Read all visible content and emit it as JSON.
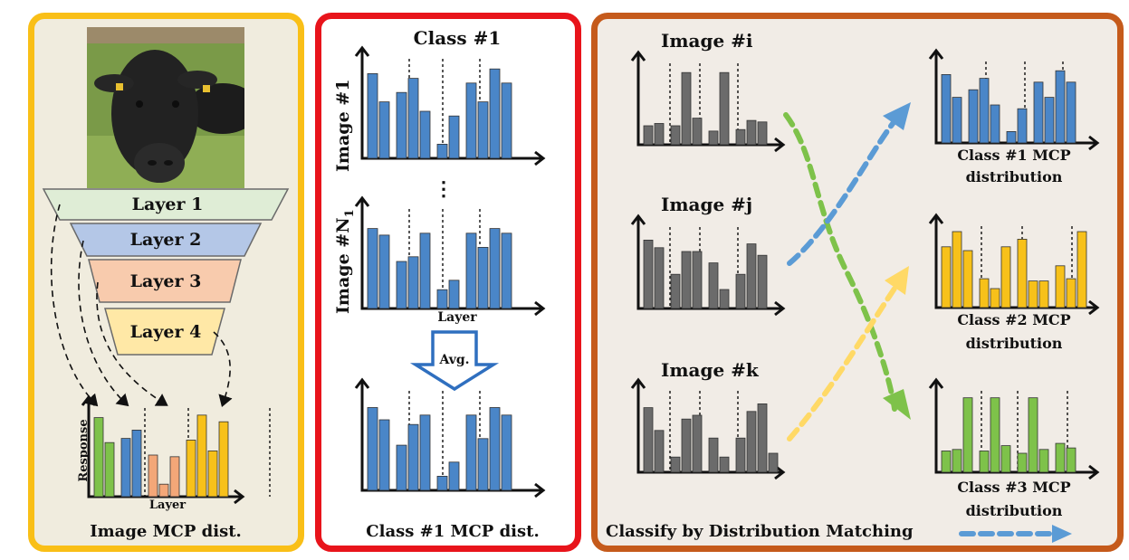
{
  "colors": {
    "blue": "#4a86c8",
    "gray": "#6b6b6b",
    "yellow": "#f7c11a",
    "green": "#7ec24a",
    "orange": "#f3a778",
    "layer1": "#dfedd6",
    "layer2": "#b4c7e7",
    "layer3": "#f8cbad",
    "layer4": "#ffe8a6",
    "panel1_border": "#f9bf17",
    "panel2_border": "#e8141b",
    "panel3_border": "#c55a1b"
  },
  "icons": {
    "photo": "cow-photo",
    "arrow": "avg-down-arrow-icon"
  },
  "panel1": {
    "layers": [
      "Layer 1",
      "Layer 2",
      "Layer 3",
      "Layer 4"
    ],
    "ylabel": "Response",
    "xlabel": "Layer",
    "caption": "Image MCP dist."
  },
  "panel2": {
    "title": "Class #1",
    "image1": "Image #1",
    "imageN": "Image #N",
    "imageN_sub": "1",
    "ellipsis": "⋮",
    "xlabel": "Layer",
    "avg": "Avg.",
    "caption": "Class #1 MCP dist."
  },
  "panel3": {
    "images": [
      "Image #i",
      "Image #j",
      "Image #k"
    ],
    "classes": [
      {
        "line1": "Class #1 MCP",
        "line2": "distribution"
      },
      {
        "line1": "Class #2 MCP",
        "line2": "distribution"
      },
      {
        "line1": "Class #3 MCP",
        "line2": "distribution"
      }
    ],
    "caption": "Classify by Distribution Matching"
  }
}
